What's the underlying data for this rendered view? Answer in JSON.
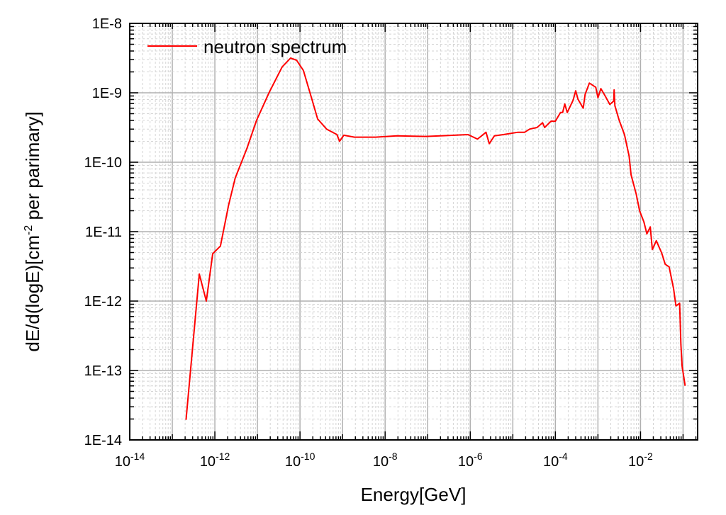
{
  "chart_data": {
    "type": "line",
    "title": "",
    "xlabel": "Energy[GeV]",
    "ylabel_parts": [
      "dE/d(logE)[cm",
      "-2",
      " per parimary]"
    ],
    "xscale": "log",
    "yscale": "log",
    "xlim": [
      1e-14,
      0.22
    ],
    "ylim": [
      1e-14,
      1e-08
    ],
    "grid": true,
    "legend_position": "top-left",
    "line_color": "#ff0000",
    "xticks": [
      {
        "base": "10",
        "exp": "-14",
        "value": 1e-14
      },
      {
        "base": "10",
        "exp": "-12",
        "value": 1e-12
      },
      {
        "base": "10",
        "exp": "-10",
        "value": 1e-10
      },
      {
        "base": "10",
        "exp": "-8",
        "value": 1e-08
      },
      {
        "base": "10",
        "exp": "-6",
        "value": 1e-06
      },
      {
        "base": "10",
        "exp": "-4",
        "value": 0.0001
      },
      {
        "base": "10",
        "exp": "-2",
        "value": 0.01
      }
    ],
    "yticks": [
      {
        "label": "1E-14",
        "value": 1e-14
      },
      {
        "label": "1E-13",
        "value": 1e-13
      },
      {
        "label": "1E-12",
        "value": 1e-12
      },
      {
        "label": "1E-11",
        "value": 1e-11
      },
      {
        "label": "1E-10",
        "value": 1e-10
      },
      {
        "label": "1E-9",
        "value": 1e-09
      },
      {
        "label": "1E-8",
        "value": 1e-08
      }
    ],
    "series": [
      {
        "name": "neutron spectrum",
        "x": [
          2.1e-13,
          4.3e-13,
          6.3e-13,
          8.9e-13,
          1.35e-12,
          2.1e-12,
          3e-12,
          5.6e-12,
          9.5e-12,
          1.9e-11,
          3.8e-11,
          6e-11,
          8.3e-11,
          1.2e-10,
          1.9e-10,
          2.6e-10,
          4.2e-10,
          7.4e-10,
          8.5e-10,
          1.07e-09,
          1.9e-09,
          6e-09,
          1.9e-08,
          8.9e-08,
          4.2e-07,
          8.9e-07,
          1.48e-06,
          2.35e-06,
          2.8e-06,
          3.7e-06,
          6e-06,
          1.32e-05,
          1.9e-05,
          2.5e-05,
          3.7e-05,
          5e-05,
          5.6e-05,
          7.9e-05,
          0.0001,
          0.000132,
          0.000148,
          0.000166,
          0.00019,
          0.00026,
          0.0003,
          0.00034,
          0.00045,
          0.0005,
          0.00063,
          0.00089,
          0.001,
          0.00117,
          0.00141,
          0.0019,
          0.00235,
          0.0024,
          0.0025,
          0.00316,
          0.0042,
          0.0054,
          0.006,
          0.0079,
          0.0095,
          0.012,
          0.0141,
          0.017,
          0.019,
          0.0235,
          0.0316,
          0.038,
          0.047,
          0.06,
          0.068,
          0.083,
          0.089,
          0.095,
          0.112
        ],
        "y": [
          1.95e-14,
          2.45e-12,
          1e-12,
          4.8e-12,
          6.2e-12,
          2.4e-11,
          5.9e-11,
          1.55e-10,
          4e-10,
          1.02e-09,
          2.35e-09,
          3.16e-09,
          2.95e-09,
          2.1e-09,
          8.1e-10,
          4.2e-10,
          3e-10,
          2.5e-10,
          2e-10,
          2.45e-10,
          2.3e-10,
          2.3e-10,
          2.4e-10,
          2.35e-10,
          2.45e-10,
          2.5e-10,
          2.15e-10,
          2.7e-10,
          1.85e-10,
          2.4e-10,
          2.5e-10,
          2.7e-10,
          2.7e-10,
          3e-10,
          3.16e-10,
          3.7e-10,
          3.16e-10,
          3.9e-10,
          3.9e-10,
          5.2e-10,
          5.2e-10,
          6.9e-10,
          5.2e-10,
          7.8e-10,
          1.07e-09,
          8.1e-10,
          6e-10,
          9.5e-10,
          1.38e-09,
          1.2e-09,
          8.5e-10,
          1.15e-09,
          9.5e-10,
          6.8e-10,
          7.6e-10,
          1.1e-09,
          6.5e-10,
          4e-10,
          2.5e-10,
          1.23e-10,
          6.6e-11,
          3.5e-11,
          2e-11,
          1.38e-11,
          9.3e-12,
          1.17e-11,
          5.5e-12,
          7.4e-12,
          4.9e-12,
          3.4e-12,
          3.1e-12,
          1.5e-12,
          8.5e-13,
          9.3e-13,
          2.35e-13,
          1.15e-13,
          6e-14
        ]
      }
    ]
  }
}
